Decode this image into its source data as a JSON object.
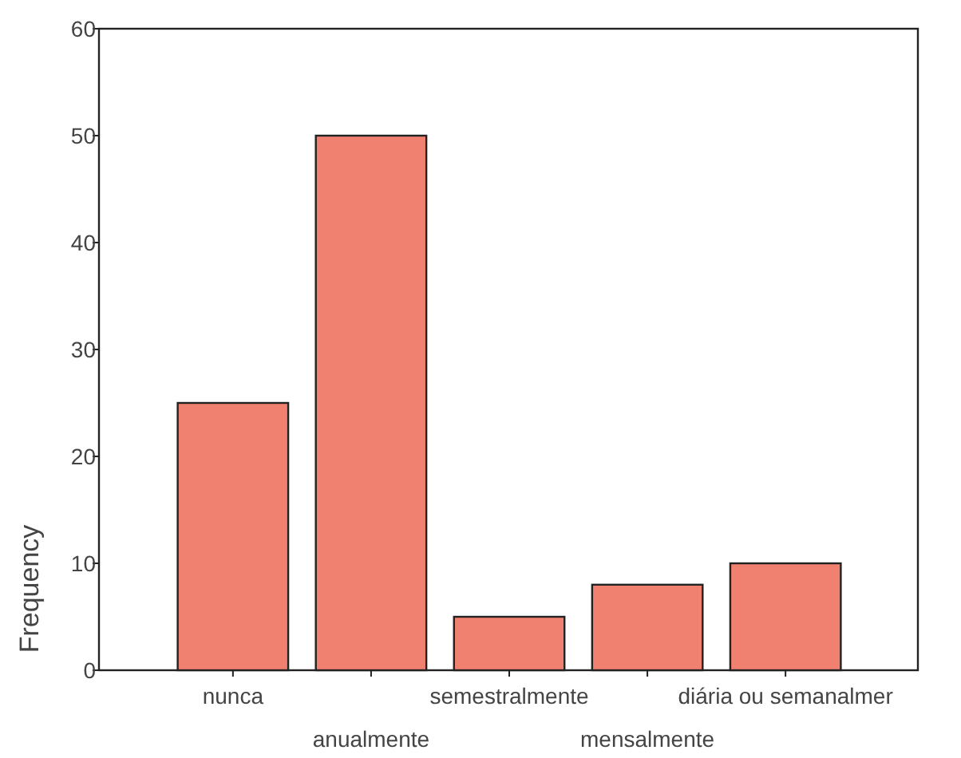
{
  "chart_data": {
    "type": "bar",
    "ylabel": "Frequency",
    "categories": [
      "nunca",
      "anualmente",
      "semestralmente",
      "mensalmente",
      "diária ou semanalmer"
    ],
    "values": [
      25,
      50,
      5,
      8,
      10
    ],
    "color": "#f08070",
    "ylim": [
      0,
      60
    ],
    "yticks": [
      0,
      10,
      20,
      30,
      40,
      50,
      60
    ],
    "grid": false
  }
}
